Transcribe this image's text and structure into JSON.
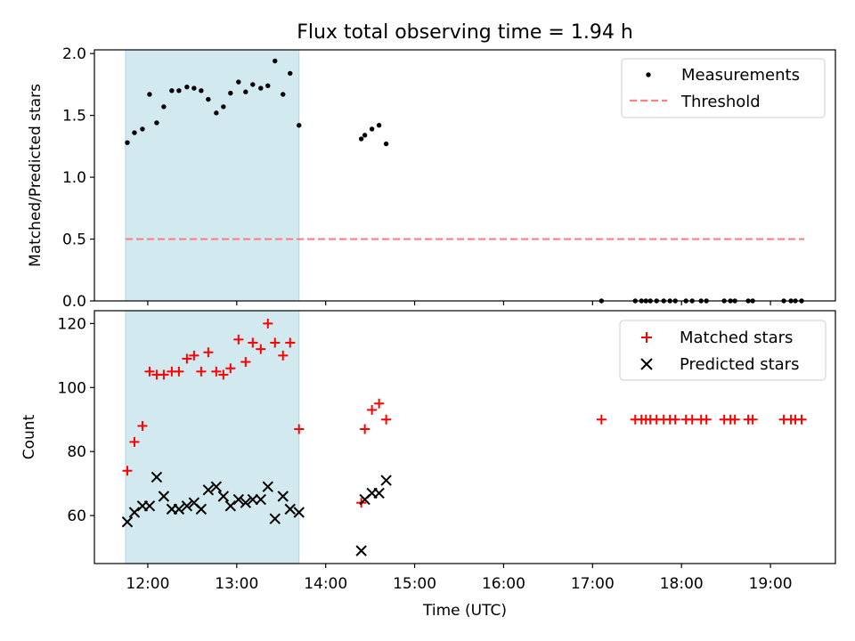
{
  "title": "Flux total observing time = 1.94 h",
  "chart_data": [
    {
      "type": "scatter",
      "ylabel": "Matched/Predicted stars",
      "xlim": [
        11.4,
        19.73
      ],
      "ylim": [
        0,
        2.03
      ],
      "y_ticks": [
        0.0,
        0.5,
        1.0,
        1.5,
        2.0
      ],
      "y_tick_labels": [
        "0.0",
        "0.5",
        "1.0",
        "1.5",
        "2.0"
      ],
      "shaded_interval": [
        11.75,
        13.7
      ],
      "shade_color": "#d3e9f0",
      "legend_position": "top-right",
      "series": [
        {
          "name": "Measurements",
          "marker": "dot",
          "color": "#000000",
          "x": [
            11.77,
            11.85,
            11.94,
            12.02,
            12.1,
            12.18,
            12.27,
            12.35,
            12.44,
            12.52,
            12.6,
            12.68,
            12.77,
            12.85,
            12.93,
            13.02,
            13.1,
            13.18,
            13.27,
            13.35,
            13.43,
            13.52,
            13.6,
            13.7,
            14.4,
            14.44,
            14.52,
            14.6,
            14.68,
            17.1,
            17.48,
            17.55,
            17.6,
            17.65,
            17.72,
            17.8,
            17.87,
            17.93,
            18.05,
            18.12,
            18.22,
            18.28,
            18.48,
            18.55,
            18.6,
            18.75,
            18.8,
            19.15,
            19.23,
            19.28,
            19.35
          ],
          "y": [
            1.28,
            1.36,
            1.39,
            1.67,
            1.44,
            1.57,
            1.7,
            1.7,
            1.73,
            1.72,
            1.7,
            1.63,
            1.52,
            1.57,
            1.68,
            1.77,
            1.69,
            1.75,
            1.72,
            1.74,
            1.94,
            1.67,
            1.84,
            1.42,
            1.31,
            1.34,
            1.39,
            1.42,
            1.27,
            0,
            0,
            0,
            0,
            0,
            0,
            0,
            0,
            0,
            0,
            0,
            0,
            0,
            0,
            0,
            0,
            0,
            0,
            0,
            0,
            0,
            0
          ]
        },
        {
          "name": "Threshold",
          "type": "line",
          "style": "dashed",
          "color": "#ff7f7f",
          "x": [
            11.75,
            19.38
          ],
          "y": [
            0.5,
            0.5
          ]
        }
      ]
    },
    {
      "type": "scatter",
      "xlabel": "Time (UTC)",
      "ylabel": "Count",
      "xlim": [
        11.4,
        19.73
      ],
      "ylim": [
        45,
        124
      ],
      "x_ticks": [
        12,
        13,
        14,
        15,
        16,
        17,
        18,
        19
      ],
      "x_tick_labels": [
        "12:00",
        "13:00",
        "14:00",
        "15:00",
        "16:00",
        "17:00",
        "18:00",
        "19:00"
      ],
      "y_ticks": [
        60,
        80,
        100,
        120
      ],
      "y_tick_labels": [
        "60",
        "80",
        "100",
        "120"
      ],
      "shaded_interval": [
        11.75,
        13.7
      ],
      "shade_color": "#d3e9f0",
      "legend_position": "top-right",
      "series": [
        {
          "name": "Matched stars",
          "marker": "plus",
          "color": "#ff0000",
          "x": [
            11.77,
            11.85,
            11.94,
            12.02,
            12.1,
            12.18,
            12.27,
            12.35,
            12.44,
            12.52,
            12.6,
            12.68,
            12.77,
            12.85,
            12.93,
            13.02,
            13.1,
            13.18,
            13.27,
            13.35,
            13.43,
            13.52,
            13.6,
            13.7,
            14.4,
            14.44,
            14.52,
            14.6,
            14.68,
            17.1,
            17.48,
            17.55,
            17.6,
            17.65,
            17.72,
            17.8,
            17.87,
            17.93,
            18.05,
            18.12,
            18.22,
            18.28,
            18.48,
            18.55,
            18.6,
            18.75,
            18.8,
            19.15,
            19.23,
            19.28,
            19.35
          ],
          "y": [
            74,
            83,
            88,
            105,
            104,
            104,
            105,
            105,
            109,
            110,
            105,
            111,
            105,
            104,
            106,
            115,
            108,
            114,
            112,
            120,
            114,
            110,
            114,
            87,
            64,
            87,
            93,
            95,
            90,
            90,
            90,
            90,
            90,
            90,
            90,
            90,
            90,
            90,
            90,
            90,
            90,
            90,
            90,
            90,
            90,
            90,
            90,
            90,
            90,
            90,
            90
          ]
        },
        {
          "name": "Predicted stars",
          "marker": "x",
          "color": "#000000",
          "x": [
            11.77,
            11.85,
            11.94,
            12.02,
            12.1,
            12.18,
            12.27,
            12.35,
            12.44,
            12.52,
            12.6,
            12.68,
            12.77,
            12.85,
            12.93,
            13.02,
            13.1,
            13.18,
            13.27,
            13.35,
            13.43,
            13.52,
            13.6,
            13.7,
            14.4,
            14.44,
            14.52,
            14.6,
            14.68
          ],
          "y": [
            58,
            61,
            63,
            63,
            72,
            66,
            62,
            62,
            63,
            64,
            62,
            68,
            69,
            66,
            63,
            65,
            64,
            65,
            65,
            69,
            59,
            66,
            62,
            61,
            49,
            65,
            67,
            67,
            71
          ]
        }
      ]
    }
  ]
}
